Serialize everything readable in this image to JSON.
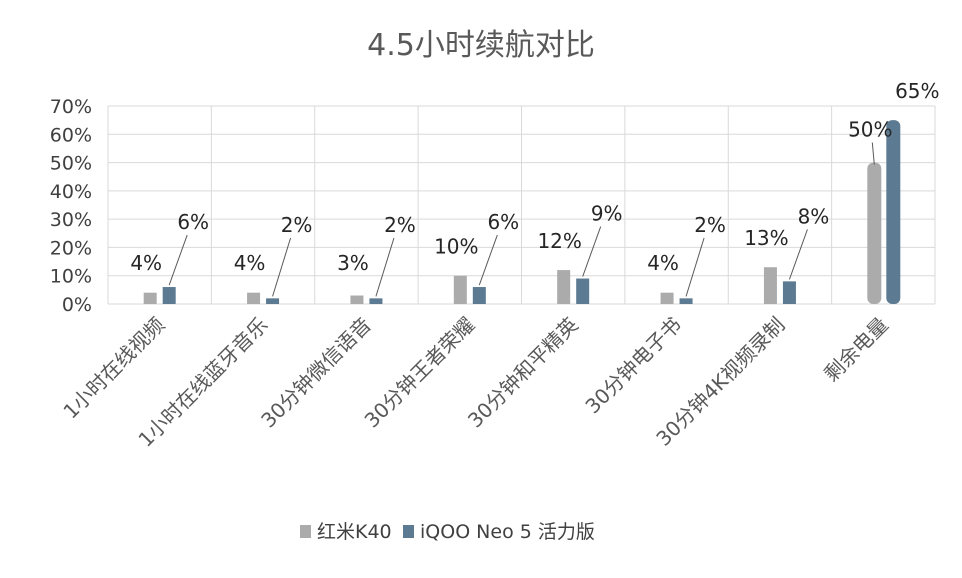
{
  "chart_data": {
    "type": "bar",
    "title": "4.5小时续航对比",
    "xlabel": "",
    "ylabel": "",
    "ylim": [
      0,
      70
    ],
    "y_ticks": [
      "0%",
      "10%",
      "20%",
      "30%",
      "40%",
      "50%",
      "60%",
      "70%"
    ],
    "grid": true,
    "legend_position": "bottom",
    "categories": [
      "1小时在线视频",
      "1小时在线蓝牙音乐",
      "30分钟微信语音",
      "30分钟王者荣耀",
      "30分钟和平精英",
      "30分钟电子书",
      "30分钟4K视频录制",
      "剩余电量"
    ],
    "series": [
      {
        "name": "红米K40",
        "color": "#ababab",
        "values": [
          4,
          4,
          3,
          10,
          12,
          4,
          13,
          50
        ],
        "labels": [
          "4%",
          "4%",
          "3%",
          "10%",
          "12%",
          "4%",
          "13%",
          "50%"
        ]
      },
      {
        "name": "iQOO Neo 5 活力版",
        "color": "#5c7a92",
        "values": [
          6,
          2,
          2,
          6,
          9,
          2,
          8,
          65
        ],
        "labels": [
          "6%",
          "2%",
          "2%",
          "6%",
          "9%",
          "2%",
          "8%",
          "65%"
        ]
      }
    ]
  }
}
